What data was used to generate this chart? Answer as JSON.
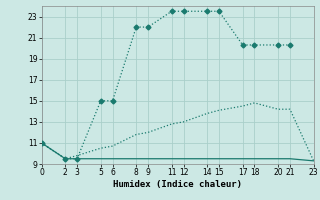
{
  "xlabel": "Humidex (Indice chaleur)",
  "xlim": [
    0,
    23
  ],
  "ylim": [
    9,
    24
  ],
  "yticks": [
    9,
    11,
    13,
    15,
    17,
    19,
    21,
    23
  ],
  "xticks": [
    0,
    2,
    3,
    5,
    6,
    8,
    9,
    11,
    12,
    14,
    15,
    17,
    18,
    20,
    21,
    23
  ],
  "bg_color": "#cce8e4",
  "grid_color": "#aacfca",
  "line_color": "#1a7a6e",
  "line1": {
    "x": [
      0,
      2,
      3,
      5,
      6,
      8,
      9,
      11,
      12,
      14,
      15,
      17,
      18,
      20,
      21
    ],
    "y": [
      11,
      9.5,
      9.5,
      15,
      15,
      22,
      22,
      23.5,
      23.5,
      23.5,
      23.5,
      20.3,
      20.3,
      20.3,
      20.3
    ],
    "linestyle": "dotted",
    "marker": "D",
    "markersize": 2.5,
    "linewidth": 0.9
  },
  "line2": {
    "x": [
      0,
      2,
      3,
      5,
      6,
      8,
      9,
      11,
      12,
      14,
      15,
      17,
      18,
      20,
      21,
      23
    ],
    "y": [
      11,
      9.5,
      9.8,
      10.5,
      10.7,
      11.8,
      12.0,
      12.8,
      13.0,
      13.8,
      14.1,
      14.5,
      14.8,
      14.2,
      14.2,
      9.3
    ],
    "linestyle": "dotted",
    "marker": null,
    "markersize": 0,
    "linewidth": 0.9
  },
  "line3": {
    "x": [
      0,
      2,
      3,
      5,
      6,
      14,
      15,
      20,
      21,
      23
    ],
    "y": [
      11,
      9.5,
      9.5,
      9.5,
      9.5,
      9.5,
      9.5,
      9.5,
      9.5,
      9.3
    ],
    "linestyle": "solid",
    "marker": null,
    "markersize": 0,
    "linewidth": 0.9
  }
}
